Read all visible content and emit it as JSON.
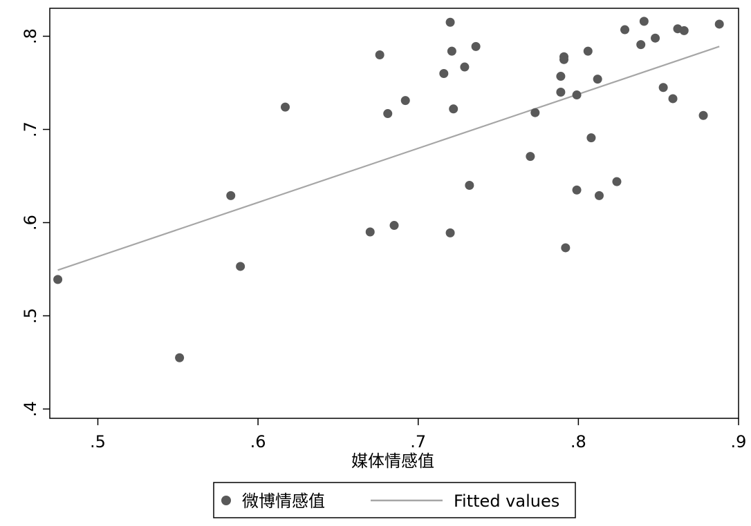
{
  "chart_data": {
    "type": "scatter",
    "title": "",
    "xlabel": "媒体情感值",
    "ylabel": "",
    "xlim": [
      0.47,
      0.9
    ],
    "ylim": [
      0.39,
      0.83
    ],
    "x_ticks": [
      0.5,
      0.6,
      0.7,
      0.8,
      0.9
    ],
    "x_tick_labels": [
      ".5",
      ".6",
      ".7",
      ".8",
      ".9"
    ],
    "y_ticks": [
      0.4,
      0.5,
      0.6,
      0.7,
      0.8
    ],
    "y_tick_labels": [
      ".4",
      ".5",
      ".6",
      ".7",
      ".8"
    ],
    "grid": false,
    "legend_position": "bottom",
    "series": [
      {
        "name": "微博情感值",
        "kind": "scatter",
        "color": "#595959",
        "points": [
          [
            0.475,
            0.539
          ],
          [
            0.551,
            0.455
          ],
          [
            0.583,
            0.629
          ],
          [
            0.589,
            0.553
          ],
          [
            0.617,
            0.724
          ],
          [
            0.67,
            0.59
          ],
          [
            0.676,
            0.78
          ],
          [
            0.681,
            0.717
          ],
          [
            0.685,
            0.597
          ],
          [
            0.692,
            0.731
          ],
          [
            0.716,
            0.76
          ],
          [
            0.72,
            0.815
          ],
          [
            0.72,
            0.589
          ],
          [
            0.721,
            0.784
          ],
          [
            0.722,
            0.722
          ],
          [
            0.729,
            0.767
          ],
          [
            0.732,
            0.64
          ],
          [
            0.736,
            0.789
          ],
          [
            0.77,
            0.671
          ],
          [
            0.773,
            0.718
          ],
          [
            0.789,
            0.757
          ],
          [
            0.789,
            0.74
          ],
          [
            0.791,
            0.775
          ],
          [
            0.791,
            0.778
          ],
          [
            0.792,
            0.573
          ],
          [
            0.799,
            0.737
          ],
          [
            0.799,
            0.635
          ],
          [
            0.806,
            0.784
          ],
          [
            0.808,
            0.691
          ],
          [
            0.812,
            0.754
          ],
          [
            0.813,
            0.629
          ],
          [
            0.824,
            0.644
          ],
          [
            0.829,
            0.807
          ],
          [
            0.839,
            0.791
          ],
          [
            0.841,
            0.816
          ],
          [
            0.848,
            0.798
          ],
          [
            0.853,
            0.745
          ],
          [
            0.859,
            0.733
          ],
          [
            0.862,
            0.808
          ],
          [
            0.866,
            0.806
          ],
          [
            0.878,
            0.715
          ],
          [
            0.888,
            0.813
          ]
        ]
      },
      {
        "name": "Fitted values",
        "kind": "line",
        "color": "#a6a6a6",
        "points": [
          [
            0.475,
            0.549
          ],
          [
            0.888,
            0.789
          ]
        ]
      }
    ]
  }
}
